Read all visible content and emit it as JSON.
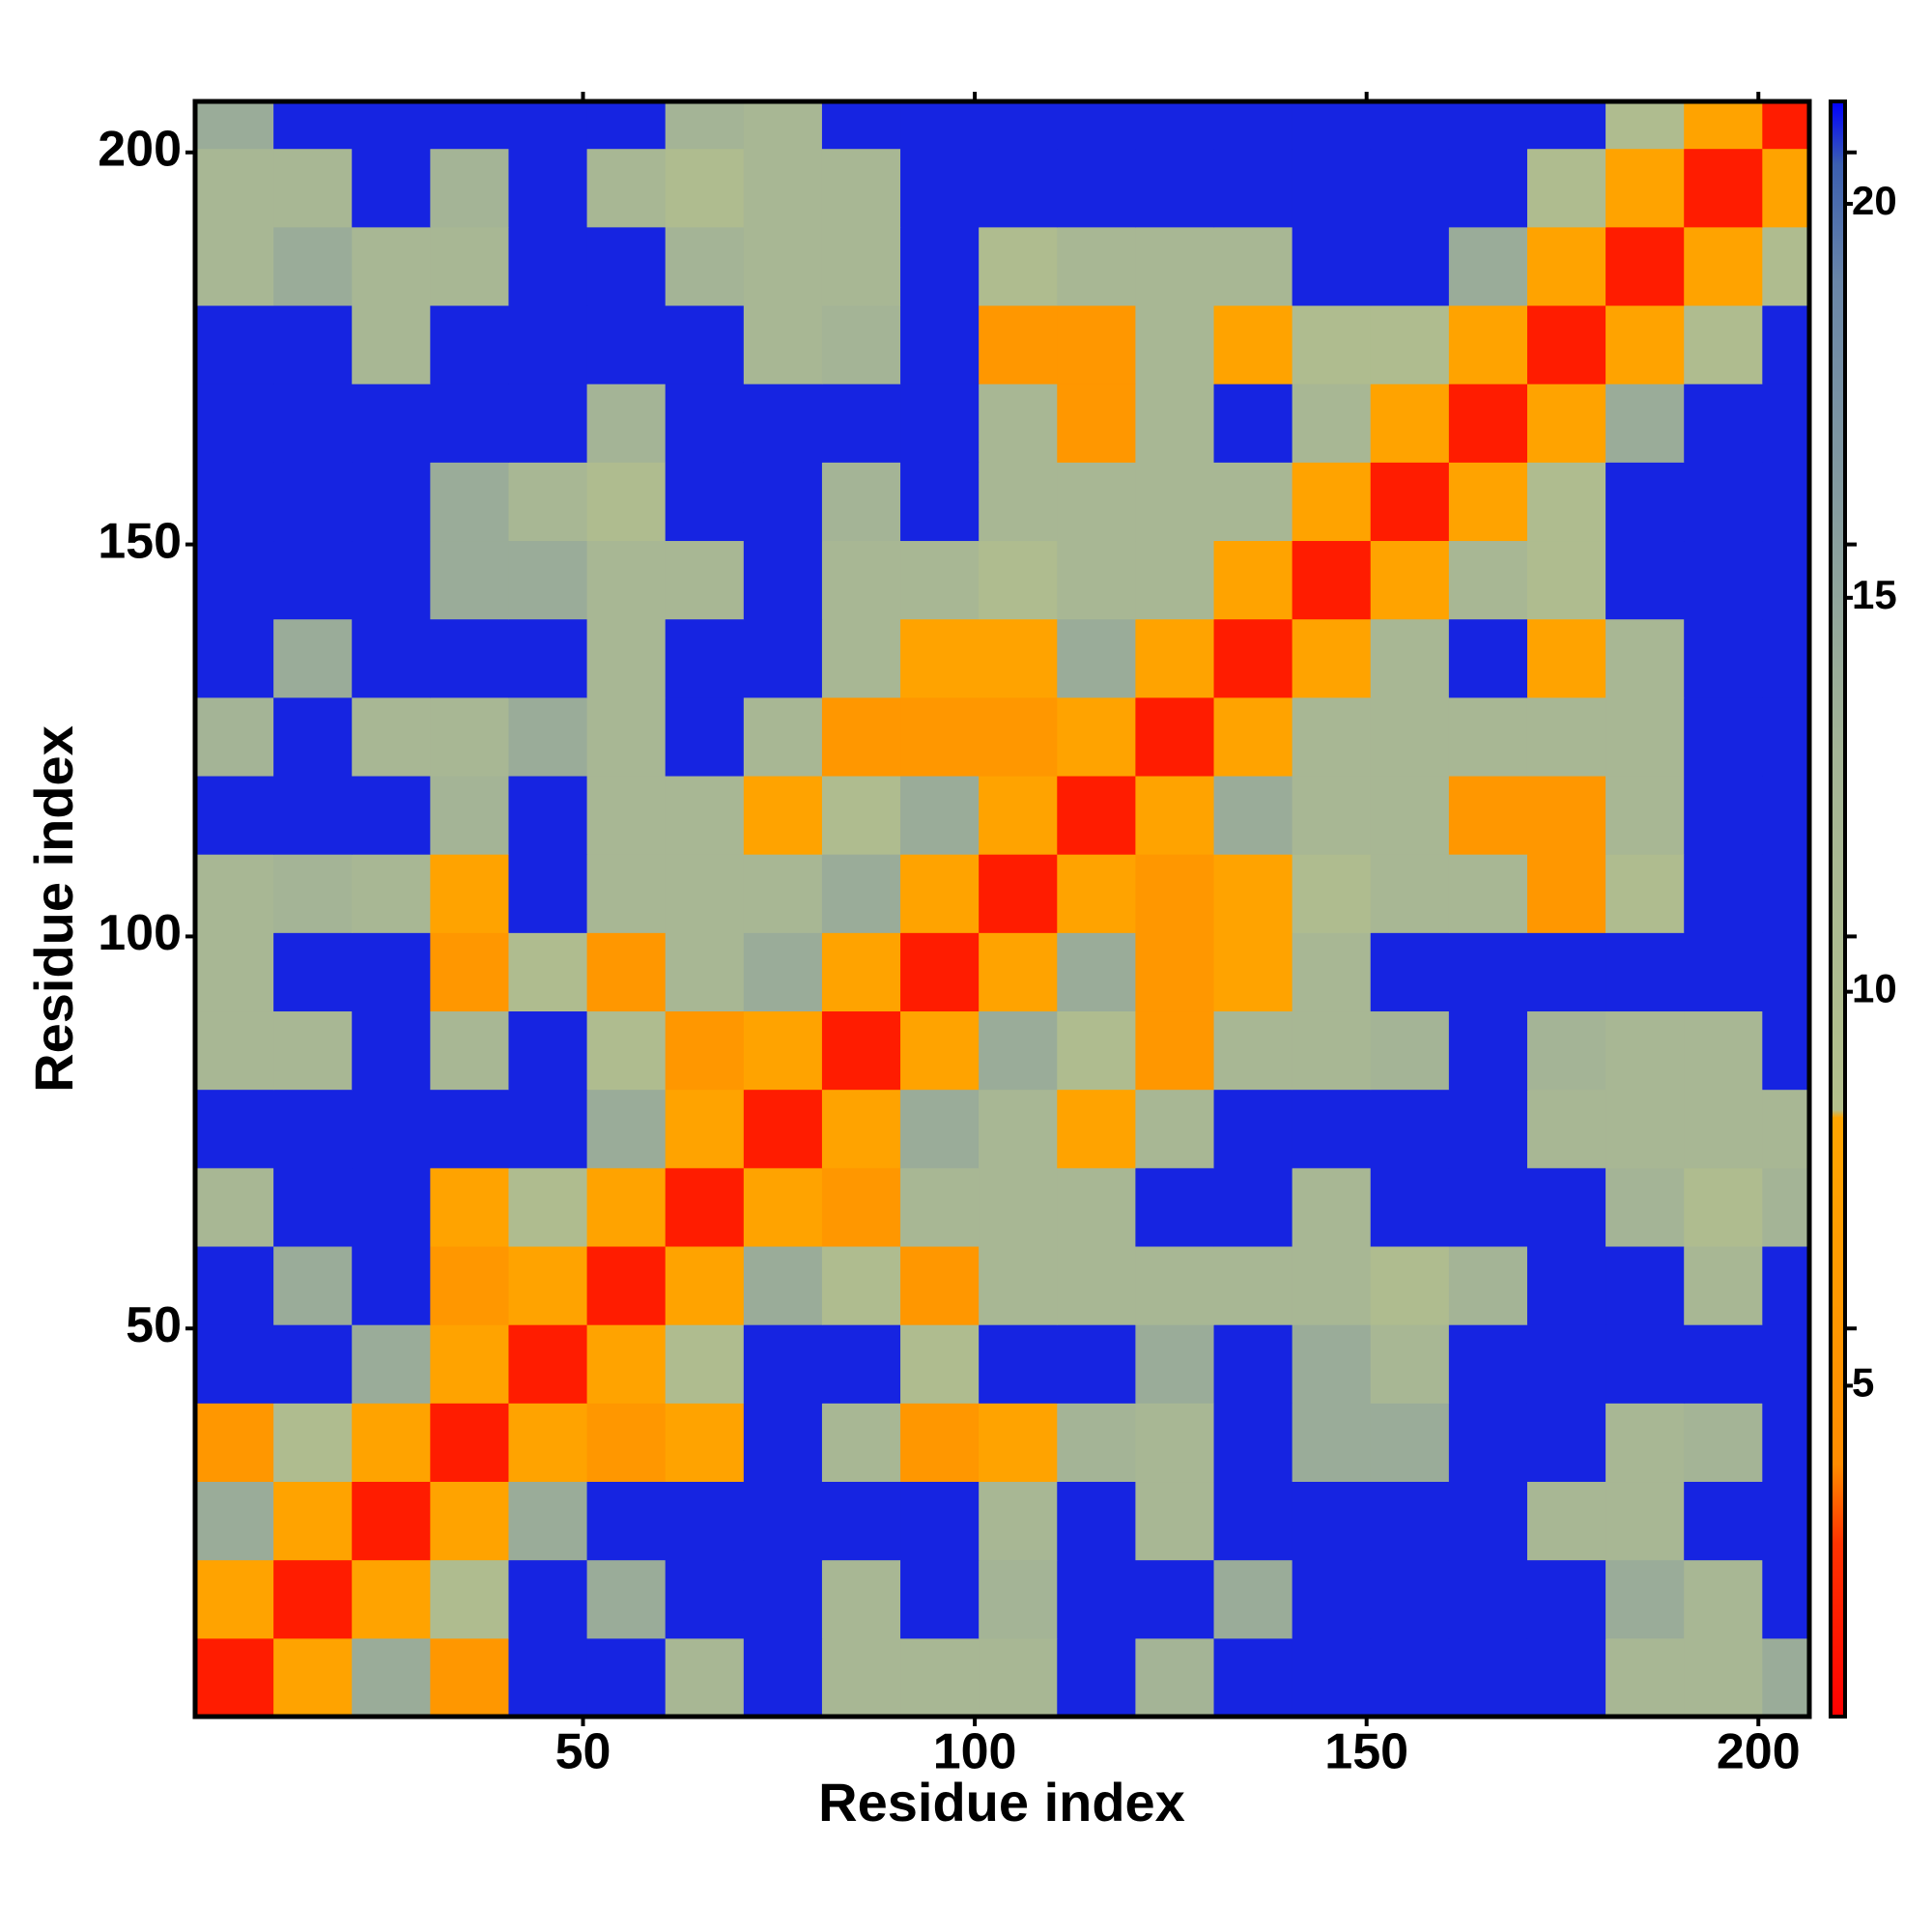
{
  "chart_data": {
    "type": "heatmap",
    "x_label": "Residue index",
    "y_label": "Residue index",
    "xlim": [
      0.5,
      206.5
    ],
    "ylim": [
      0.5,
      206.5
    ],
    "xticks": [
      50,
      100,
      150,
      200
    ],
    "yticks": [
      50,
      100,
      150,
      200
    ],
    "xbins": [
      0.5,
      10.5,
      20.5,
      30.5,
      40.5,
      50.5,
      60.5,
      70.5,
      80.5,
      90.5,
      100.5,
      110.5,
      120.5,
      130.5,
      140.5,
      150.5,
      160.5,
      170.5,
      180.5,
      190.5,
      200.5,
      206.5
    ],
    "ybins": [
      0.5,
      10.5,
      20.5,
      30.5,
      40.5,
      50.5,
      60.5,
      70.5,
      80.5,
      90.5,
      100.5,
      110.5,
      120.5,
      130.5,
      140.5,
      150.5,
      160.5,
      170.5,
      180.5,
      190.5,
      200.5,
      206.5
    ],
    "z": [
      [
        2,
        8,
        14,
        6,
        21,
        21,
        12,
        21,
        12,
        12,
        12,
        21,
        13,
        21,
        21,
        21,
        21,
        21,
        12,
        12,
        14
      ],
      [
        8,
        2,
        8,
        10,
        21,
        14,
        21,
        21,
        12,
        21,
        13,
        21,
        21,
        14,
        21,
        21,
        21,
        21,
        14,
        12,
        21
      ],
      [
        14,
        8,
        2,
        8,
        14,
        21,
        21,
        21,
        21,
        21,
        12,
        21,
        12,
        21,
        21,
        21,
        21,
        12,
        12,
        21,
        21
      ],
      [
        6,
        10,
        8,
        2,
        8,
        6,
        8,
        21,
        12,
        6,
        8,
        13,
        12,
        21,
        14,
        14,
        21,
        21,
        12,
        13,
        21
      ],
      [
        21,
        21,
        14,
        8,
        2,
        8,
        10,
        21,
        21,
        10,
        21,
        21,
        14,
        21,
        14,
        12,
        21,
        21,
        21,
        21,
        21
      ],
      [
        21,
        14,
        21,
        6,
        8,
        2,
        8,
        14,
        10,
        6,
        12,
        12,
        12,
        12,
        12,
        10,
        13,
        21,
        21,
        12,
        21
      ],
      [
        12,
        21,
        21,
        8,
        10,
        8,
        2,
        8,
        6,
        12,
        12,
        12,
        21,
        21,
        12,
        21,
        21,
        21,
        13,
        10,
        13
      ],
      [
        21,
        21,
        21,
        21,
        21,
        14,
        8,
        2,
        8,
        14,
        12,
        8,
        12,
        21,
        21,
        21,
        21,
        12,
        12,
        12,
        12
      ],
      [
        12,
        12,
        21,
        12,
        21,
        10,
        6,
        8,
        2,
        8,
        14,
        10,
        6,
        12,
        12,
        13,
        21,
        13,
        12,
        12,
        21
      ],
      [
        12,
        21,
        21,
        6,
        10,
        6,
        12,
        14,
        8,
        2,
        8,
        14,
        6,
        8,
        12,
        21,
        21,
        21,
        21,
        21,
        21
      ],
      [
        12,
        13,
        12,
        8,
        21,
        12,
        12,
        12,
        14,
        8,
        2,
        8,
        6,
        8,
        10,
        12,
        12,
        6,
        10,
        21,
        21
      ],
      [
        21,
        21,
        21,
        13,
        21,
        12,
        12,
        8,
        10,
        14,
        8,
        2,
        8,
        14,
        12,
        12,
        6,
        6,
        12,
        21,
        21
      ],
      [
        13,
        21,
        12,
        12,
        14,
        12,
        21,
        12,
        6,
        6,
        6,
        8,
        2,
        8,
        12,
        12,
        12,
        12,
        12,
        21,
        21
      ],
      [
        21,
        14,
        21,
        21,
        21,
        12,
        21,
        21,
        12,
        8,
        8,
        14,
        8,
        2,
        8,
        12,
        21,
        8,
        12,
        21,
        21
      ],
      [
        21,
        21,
        21,
        14,
        14,
        12,
        12,
        21,
        12,
        12,
        10,
        12,
        12,
        8,
        2,
        8,
        12,
        10,
        21,
        21,
        21
      ],
      [
        21,
        21,
        21,
        14,
        12,
        10,
        21,
        21,
        13,
        21,
        12,
        12,
        12,
        12,
        8,
        2,
        8,
        10,
        21,
        21,
        21
      ],
      [
        21,
        21,
        21,
        21,
        21,
        13,
        21,
        21,
        21,
        21,
        12,
        6,
        12,
        21,
        12,
        8,
        2,
        8,
        14,
        21,
        21
      ],
      [
        21,
        21,
        12,
        21,
        21,
        21,
        21,
        12,
        13,
        21,
        6,
        6,
        12,
        8,
        10,
        10,
        8,
        2,
        8,
        10,
        21
      ],
      [
        12,
        14,
        12,
        12,
        21,
        21,
        13,
        12,
        12,
        21,
        10,
        12,
        12,
        12,
        21,
        21,
        14,
        8,
        2,
        8,
        10
      ],
      [
        12,
        12,
        21,
        13,
        21,
        12,
        10,
        12,
        12,
        21,
        21,
        21,
        21,
        21,
        21,
        21,
        21,
        10,
        8,
        2,
        8
      ],
      [
        14,
        21,
        21,
        21,
        21,
        21,
        13,
        12,
        21,
        21,
        21,
        21,
        21,
        21,
        21,
        21,
        21,
        21,
        10,
        8,
        2
      ]
    ],
    "zlim": [
      0.8,
      21.3
    ],
    "zticks": [
      5,
      10,
      15,
      20
    ],
    "colorscale": [
      [
        0.8,
        "#ff0000"
      ],
      [
        3,
        "#ff3300"
      ],
      [
        4,
        "#ff8c00"
      ],
      [
        8.4,
        "#ffa500"
      ],
      [
        8.5,
        "#b4c08c"
      ],
      [
        13,
        "#a4b496"
      ],
      [
        19,
        "#6a86a8"
      ],
      [
        20.5,
        "#3b5fb0"
      ],
      [
        21.3,
        "#0000ff"
      ]
    ]
  }
}
